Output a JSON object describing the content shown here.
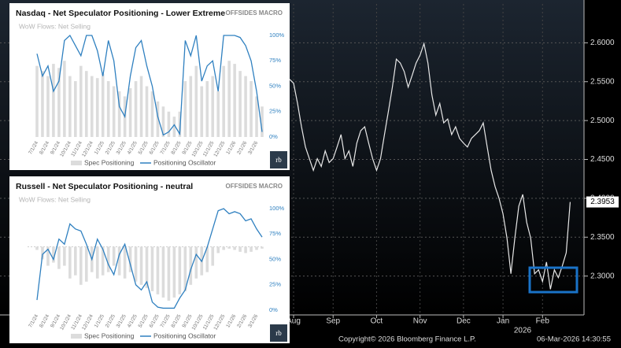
{
  "chart_data": [
    {
      "type": "line",
      "series": [
        {
          "name": "USDCAD",
          "color": "#e8e8e8",
          "values": [
            2.553,
            2.548,
            2.522,
            2.492,
            2.466,
            2.451,
            2.436,
            2.451,
            2.441,
            2.461,
            2.446,
            2.451,
            2.466,
            2.482,
            2.451,
            2.461,
            2.441,
            2.471,
            2.487,
            2.492,
            2.471,
            2.451,
            2.436,
            2.451,
            2.482,
            2.512,
            2.543,
            2.579,
            2.574,
            2.563,
            2.543,
            2.558,
            2.574,
            2.584,
            2.599,
            2.574,
            2.533,
            2.507,
            2.522,
            2.497,
            2.502,
            2.482,
            2.492,
            2.477,
            2.471,
            2.466,
            2.477,
            2.482,
            2.487,
            2.497,
            2.466,
            2.436,
            2.415,
            2.4,
            2.38,
            2.349,
            2.303,
            2.349,
            2.39,
            2.405,
            2.369,
            2.349,
            2.303,
            2.308,
            2.293,
            2.318,
            2.283,
            2.308,
            2.298,
            2.313,
            2.33,
            2.3953
          ]
        }
      ],
      "ylim": [
        2.25,
        2.65
      ],
      "yticks": [
        {
          "value": 2.3,
          "label": "2.3000"
        },
        {
          "value": 2.35,
          "label": "2.3500"
        },
        {
          "value": 2.4,
          "label": "2.4000"
        },
        {
          "value": 2.45,
          "label": "2.4500"
        },
        {
          "value": 2.5,
          "label": "2.5000"
        },
        {
          "value": 2.55,
          "label": "2.5500"
        },
        {
          "value": 2.6,
          "label": "2.6000"
        }
      ],
      "xlim": [
        0,
        74
      ],
      "xticks": [
        {
          "value": 1,
          "label": "Aug"
        },
        {
          "value": 11,
          "label": "Sep"
        },
        {
          "value": 22,
          "label": "Oct"
        },
        {
          "value": 33,
          "label": "Nov"
        },
        {
          "value": 44,
          "label": "Dec"
        },
        {
          "value": 54,
          "label": "Jan"
        },
        {
          "value": 64,
          "label": "Feb"
        }
      ],
      "year_label": "2026",
      "grid": true,
      "source": "Copyright© 2026 Bloomberg Finance L.P.",
      "date_stamp": "06-Mar-2026 14:30:55"
    },
    {
      "type": "bar-line",
      "title": "Nasdaq - Net Speculator Positioning - Lower Extreme",
      "brand": "OFFSIDES MACRO",
      "subtitle": "WoW Flows: Net Selling",
      "logo": "rb",
      "categories": [
        "7/1/24",
        null,
        "8/1/24",
        null,
        "9/1/24",
        null,
        "10/1/24",
        null,
        "11/1/24",
        null,
        "12/1/24",
        null,
        "1/1/25",
        null,
        "2/1/25",
        null,
        "3/1/25",
        null,
        "4/1/25",
        null,
        "5/1/25",
        null,
        "6/1/25",
        null,
        "7/1/25",
        null,
        "8/1/25",
        null,
        "9/1/25",
        null,
        "10/1/25",
        null,
        "11/1/25",
        null,
        "12/1/25",
        null,
        "1/1/26",
        null,
        "2/1/26",
        null,
        "3/1/26",
        null
      ],
      "series": [
        {
          "name": "Spec Positioning",
          "type": "bar",
          "axis": "y2",
          "color": "#dcdcdc",
          "values": [
            70,
            65,
            60,
            72,
            68,
            75,
            60,
            55,
            70,
            65,
            60,
            58,
            62,
            55,
            50,
            45,
            40,
            48,
            55,
            60,
            50,
            45,
            35,
            30,
            25,
            20,
            25,
            55,
            60,
            70,
            50,
            55,
            60,
            45,
            70,
            75,
            72,
            65,
            60,
            55,
            40,
            30
          ]
        },
        {
          "name": "Positioning Oscillator",
          "type": "line",
          "color": "#2f80c0",
          "values": [
            82,
            60,
            70,
            45,
            55,
            95,
            100,
            90,
            80,
            100,
            100,
            85,
            60,
            95,
            75,
            30,
            20,
            60,
            88,
            95,
            70,
            50,
            20,
            2,
            5,
            12,
            3,
            95,
            80,
            100,
            55,
            70,
            75,
            45,
            100,
            100,
            100,
            98,
            90,
            75,
            45,
            5
          ]
        }
      ],
      "ylim": [
        0,
        100
      ],
      "yticks": [
        {
          "value": 0,
          "label": "0%"
        },
        {
          "value": 25,
          "label": "25%"
        },
        {
          "value": 50,
          "label": "50%"
        },
        {
          "value": 75,
          "label": "75%"
        },
        {
          "value": 100,
          "label": "100%"
        }
      ],
      "y2lim": [
        0,
        100
      ]
    },
    {
      "type": "bar-line",
      "title": "Russell - Net Speculator Positioning - neutral",
      "brand": "OFFSIDES MACRO",
      "subtitle": "WoW Flows: Net Selling",
      "logo": "rb",
      "categories": [
        "7/1/24",
        null,
        "8/1/24",
        null,
        "9/1/24",
        null,
        "10/1/24",
        null,
        "11/1/24",
        null,
        "12/1/24",
        null,
        "1/1/25",
        null,
        "2/1/25",
        null,
        "3/1/25",
        null,
        "4/1/25",
        null,
        "5/1/25",
        null,
        "6/1/25",
        null,
        "7/1/25",
        null,
        "8/1/25",
        null,
        "9/1/25",
        null,
        "10/1/25",
        null,
        "11/1/25",
        null,
        "12/1/25",
        null,
        "1/1/26",
        null,
        "2/1/26",
        null,
        "3/1/26",
        null
      ],
      "series": [
        {
          "name": "Spec Positioning",
          "type": "bar",
          "axis": "y2",
          "color": "#dcdcdc",
          "values": [
            -5,
            -20,
            -30,
            -25,
            -35,
            -30,
            -50,
            -45,
            -60,
            -55,
            -40,
            -50,
            -45,
            -40,
            -30,
            -45,
            -50,
            -40,
            -55,
            -60,
            -65,
            -70,
            -75,
            -80,
            -85,
            -80,
            -75,
            -70,
            -60,
            -50,
            -45,
            -40,
            -30,
            -10,
            -5,
            -3,
            -5,
            -8,
            -10,
            -8,
            -5,
            -3
          ]
        },
        {
          "name": "Positioning Oscillator",
          "type": "line",
          "color": "#2f80c0",
          "values": [
            10,
            55,
            60,
            50,
            70,
            65,
            85,
            80,
            78,
            65,
            50,
            70,
            60,
            45,
            35,
            55,
            65,
            45,
            25,
            20,
            28,
            8,
            3,
            2,
            2,
            2,
            12,
            20,
            40,
            55,
            48,
            62,
            80,
            98,
            100,
            95,
            97,
            95,
            88,
            90,
            80,
            72
          ]
        }
      ],
      "ylim": [
        0,
        100
      ],
      "yticks": [
        {
          "value": 0,
          "label": "0%"
        },
        {
          "value": 25,
          "label": "25%"
        },
        {
          "value": 50,
          "label": "50%"
        },
        {
          "value": 75,
          "label": "75%"
        },
        {
          "value": 100,
          "label": "100%"
        }
      ],
      "y2lim": [
        -100,
        60
      ]
    }
  ]
}
